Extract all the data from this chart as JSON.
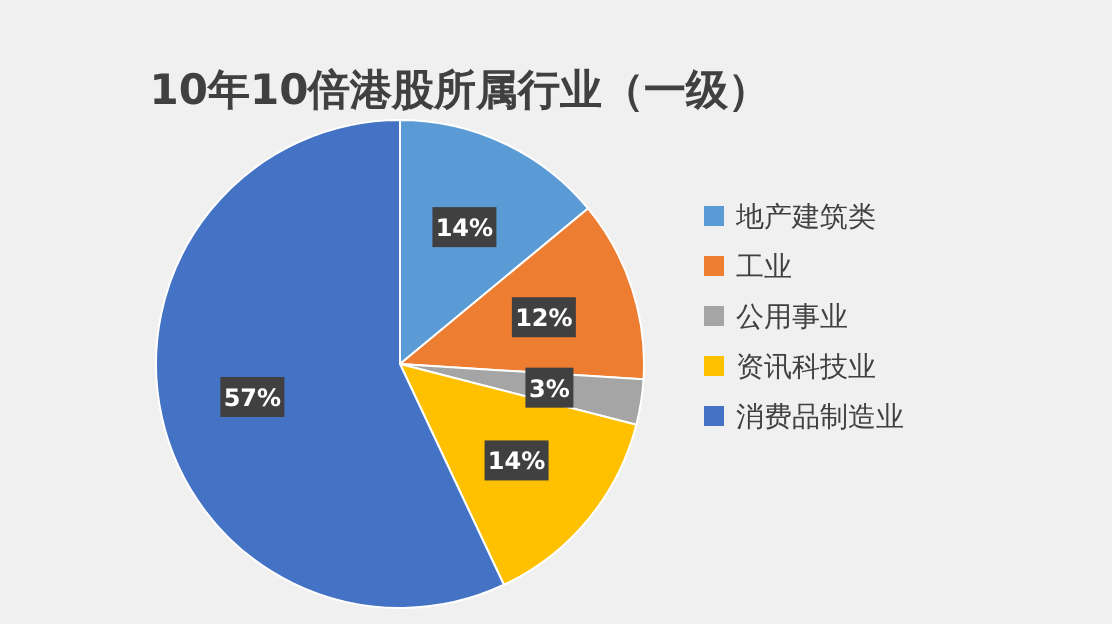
{
  "chart_data": {
    "type": "pie",
    "title": "10年10倍港股所属行业（一级）",
    "categories": [
      "地产建筑类",
      "工业",
      "公用事业",
      "资讯科技业",
      "消费品制造业"
    ],
    "values": [
      14,
      12,
      3,
      14,
      57
    ],
    "value_labels": [
      "14%",
      "12%",
      "3%",
      "14%",
      "57%"
    ],
    "colors": [
      "#5b9bd5",
      "#ed7d31",
      "#a5a5a5",
      "#ffc000",
      "#4472c4"
    ],
    "legend": "right"
  }
}
